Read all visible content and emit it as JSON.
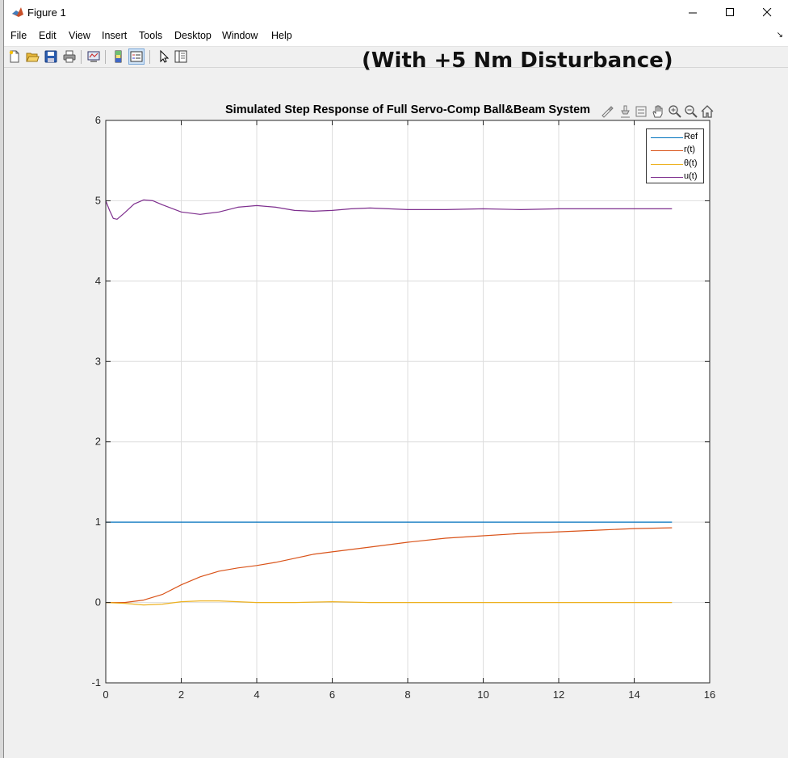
{
  "window": {
    "title": "Figure 1",
    "buttons": {
      "minimize": "—",
      "maximize": "☐",
      "close": "✕"
    }
  },
  "menu": [
    "File",
    "Edit",
    "View",
    "Insert",
    "Tools",
    "Desktop",
    "Window",
    "Help"
  ],
  "toolbar_icons": [
    "new-figure-icon",
    "open-file-icon",
    "save-icon",
    "print-icon",
    "link-plot-icon",
    "colorbar-icon",
    "legend-icon",
    "pointer-icon",
    "property-inspector-icon"
  ],
  "axes_toolbar_icons": [
    "brush-icon",
    "data-tips-icon",
    "export-icon",
    "pan-icon",
    "zoom-in-icon",
    "zoom-out-icon",
    "home-icon"
  ],
  "annotation": "(With +5 Nm Disturbance)",
  "chart_data": {
    "type": "line",
    "title": "Simulated Step Response of Full Servo-Comp Ball&Beam System",
    "xlabel": "",
    "ylabel": "",
    "xlim": [
      0,
      16
    ],
    "ylim": [
      -1,
      6
    ],
    "xticks": [
      0,
      2,
      4,
      6,
      8,
      10,
      12,
      14,
      16
    ],
    "yticks": [
      -1,
      0,
      1,
      2,
      3,
      4,
      5,
      6
    ],
    "grid": true,
    "legend_position": "top-right",
    "series": [
      {
        "name": "Ref",
        "color": "#0072BD",
        "x": [
          0,
          15
        ],
        "y": [
          1,
          1
        ]
      },
      {
        "name": "r(t)",
        "color": "#D95319",
        "x": [
          0,
          0.5,
          1,
          1.5,
          2,
          2.5,
          3,
          3.5,
          4,
          4.5,
          5,
          5.5,
          6,
          7,
          8,
          9,
          10,
          11,
          12,
          13,
          14,
          15
        ],
        "y": [
          0,
          0.0,
          0.03,
          0.1,
          0.22,
          0.32,
          0.39,
          0.43,
          0.46,
          0.5,
          0.55,
          0.6,
          0.63,
          0.69,
          0.75,
          0.8,
          0.83,
          0.86,
          0.88,
          0.9,
          0.92,
          0.93
        ]
      },
      {
        "name": "θ(t)",
        "color": "#EDB120",
        "x": [
          0,
          0.5,
          1,
          1.5,
          2,
          2.5,
          3,
          3.5,
          4,
          5,
          6,
          7,
          8,
          10,
          12,
          15
        ],
        "y": [
          0,
          -0.01,
          -0.03,
          -0.02,
          0.01,
          0.02,
          0.02,
          0.01,
          0.0,
          0.0,
          0.01,
          0.0,
          0.0,
          0.0,
          0.0,
          0.0
        ]
      },
      {
        "name": "u(t)",
        "color": "#7E2F8E",
        "x": [
          0,
          0.1,
          0.2,
          0.3,
          0.5,
          0.75,
          1.0,
          1.25,
          1.5,
          2.0,
          2.5,
          3.0,
          3.5,
          4.0,
          4.5,
          5.0,
          5.5,
          6.0,
          6.5,
          7.0,
          7.5,
          8.0,
          9.0,
          10.0,
          11.0,
          12.0,
          13.0,
          14.0,
          15.0
        ],
        "y": [
          5.0,
          4.88,
          4.78,
          4.77,
          4.85,
          4.96,
          5.01,
          5.0,
          4.95,
          4.86,
          4.83,
          4.86,
          4.92,
          4.94,
          4.92,
          4.88,
          4.87,
          4.88,
          4.9,
          4.91,
          4.9,
          4.89,
          4.89,
          4.9,
          4.89,
          4.9,
          4.9,
          4.9,
          4.9
        ]
      }
    ]
  }
}
